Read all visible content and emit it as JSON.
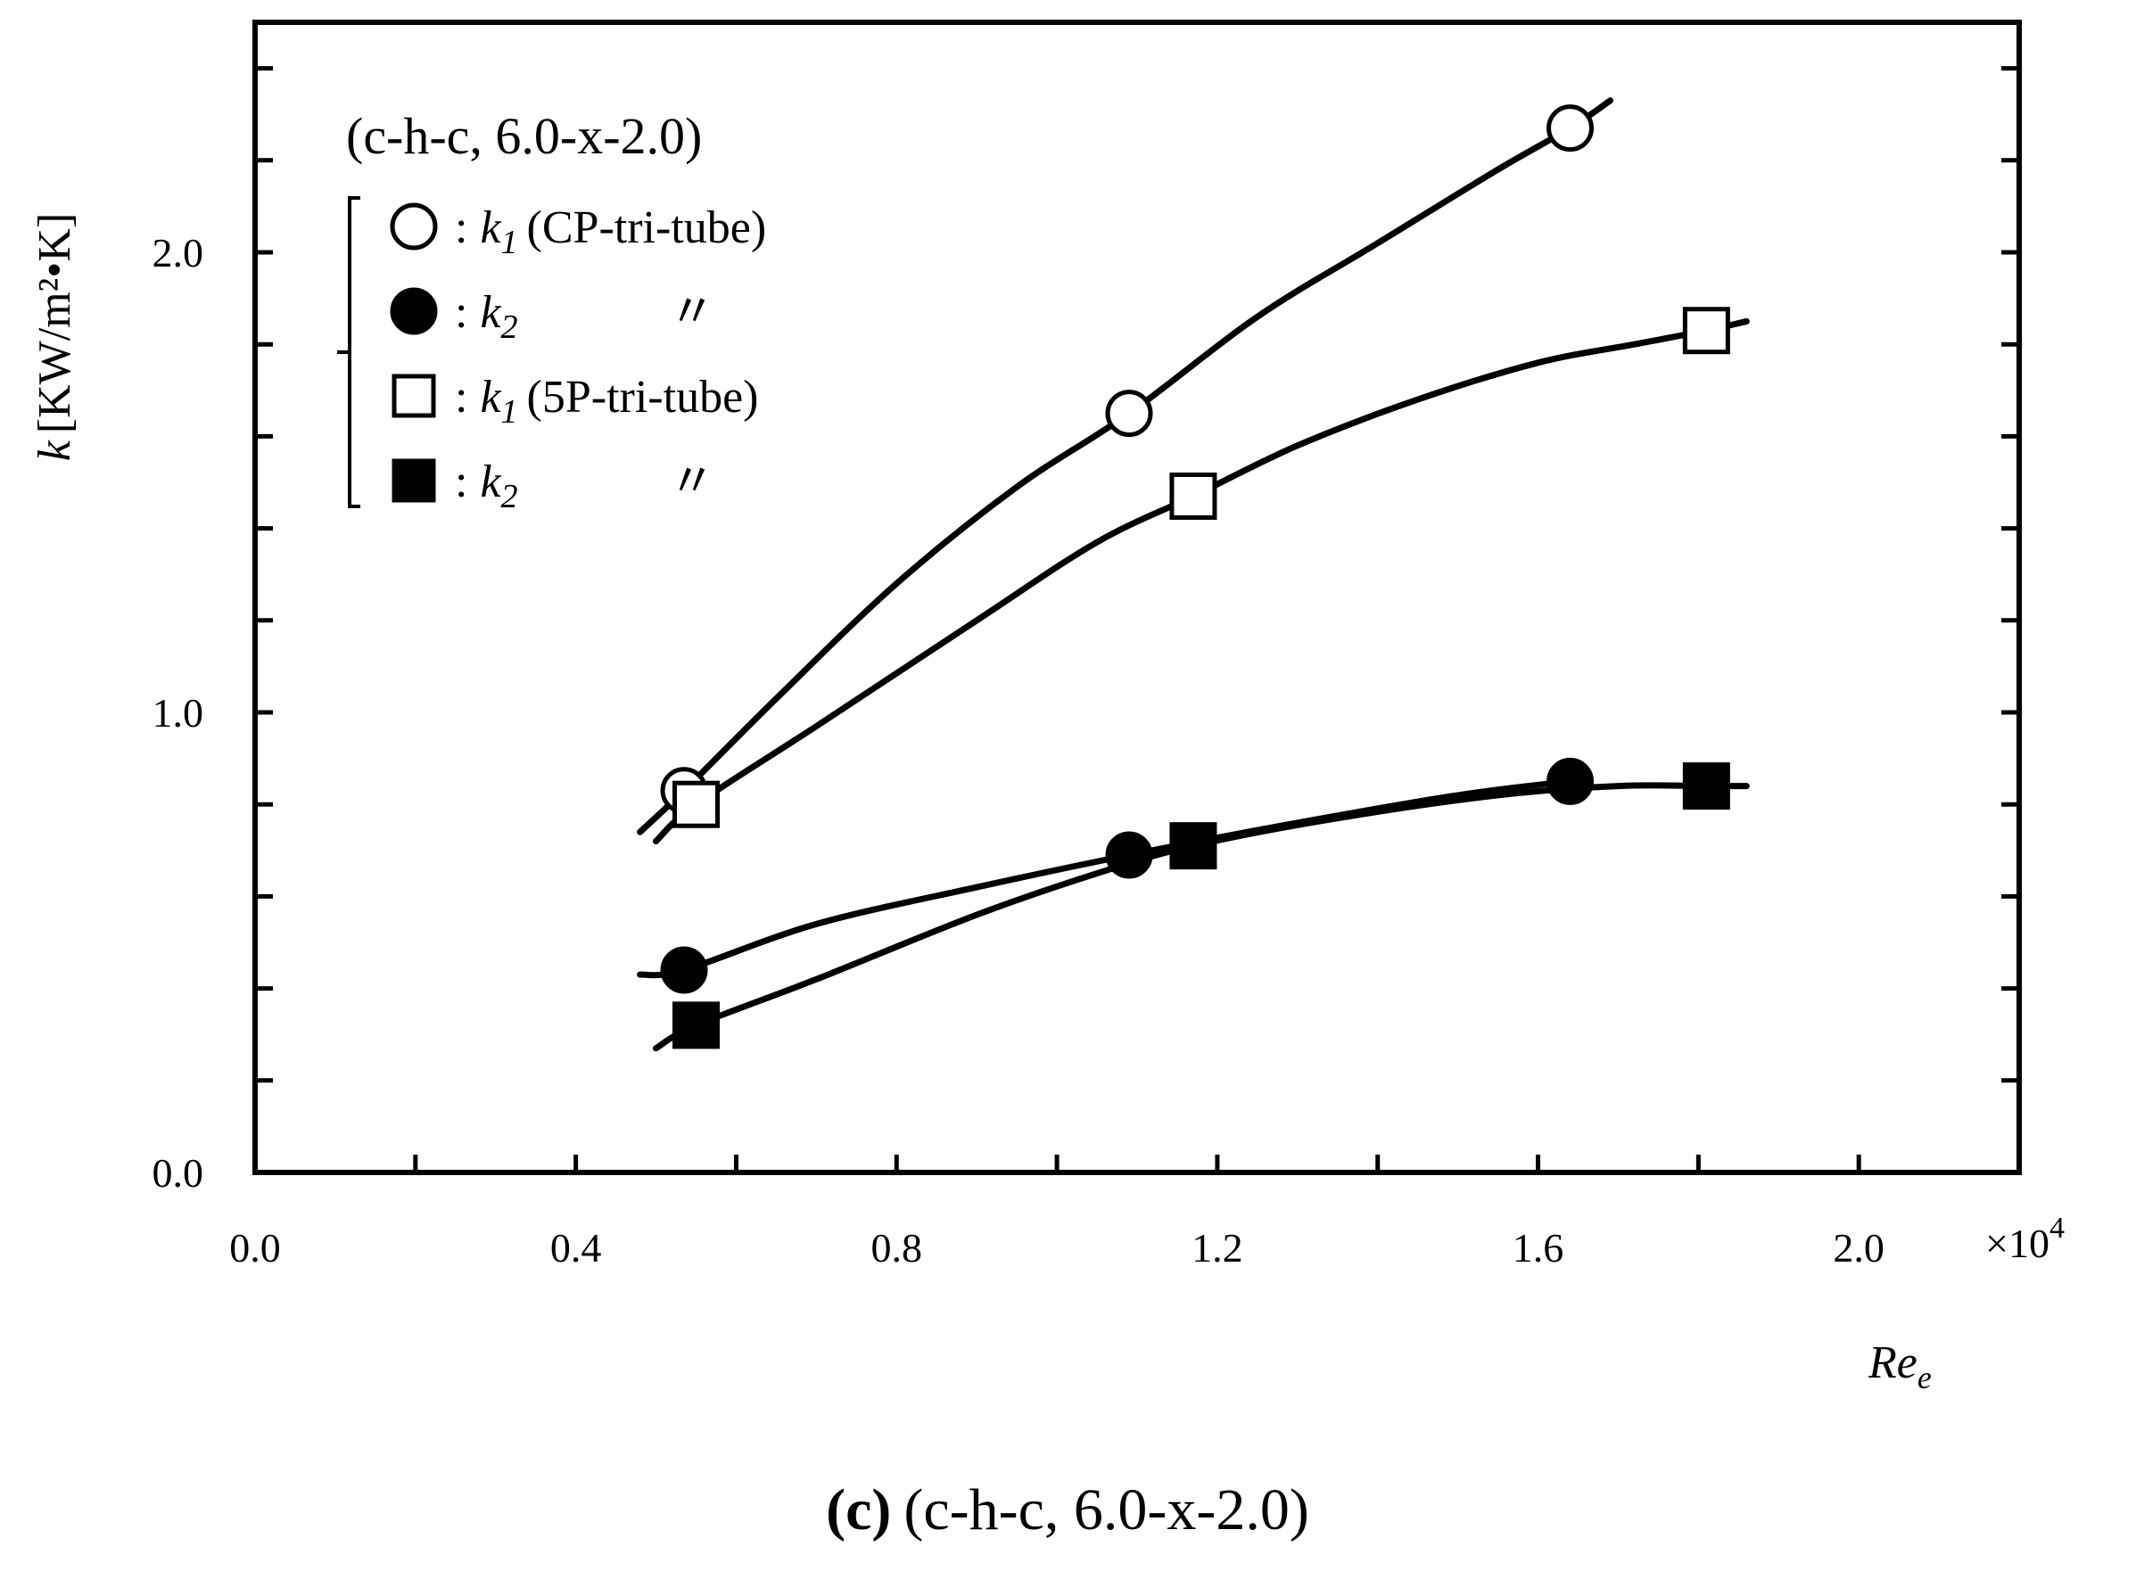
{
  "chart_data": {
    "type": "scatter",
    "title": "(c-h-c, 6.0-x-2.0)",
    "caption": {
      "label": "c",
      "text": "(c-h-c, 6.0-x-2.0)"
    },
    "xlabel": {
      "symbol": "Re",
      "subscript": "e"
    },
    "x_multiplier": "×10",
    "x_multiplier_exponent": "4",
    "ylabel": {
      "symbol": "k",
      "unit": "[KW/m²•K]"
    },
    "xlim": [
      0.0,
      2.2
    ],
    "ylim": [
      0.0,
      2.5
    ],
    "x_tick_labels": [
      "0.0",
      "0.4",
      "0.8",
      "1.2",
      "1.6",
      "2.0"
    ],
    "y_tick_labels": [
      "0.0",
      "1.0",
      "2.0"
    ],
    "x_ticks": [
      0.0,
      0.2,
      0.4,
      0.6,
      0.8,
      1.0,
      1.2,
      1.4,
      1.6,
      1.8,
      2.0,
      2.2
    ],
    "y_ticks": [
      0.0,
      0.2,
      0.4,
      0.6,
      0.8,
      1.0,
      1.2,
      1.4,
      1.6,
      1.8,
      2.0,
      2.2,
      2.4
    ],
    "grid": false,
    "legend_placement": "top-left",
    "series": [
      {
        "marker": "circle-open",
        "legend": {
          "symbol": "k",
          "subscript": "1",
          "text": "(CP-tri-tube)"
        },
        "points": [
          [
            0.535,
            0.83
          ],
          [
            1.09,
            1.65
          ],
          [
            1.64,
            2.27
          ]
        ],
        "curve": [
          [
            0.48,
            0.74
          ],
          [
            0.535,
            0.83
          ],
          [
            0.65,
            1.03
          ],
          [
            0.8,
            1.28
          ],
          [
            0.95,
            1.49
          ],
          [
            1.09,
            1.65
          ],
          [
            1.25,
            1.86
          ],
          [
            1.4,
            2.02
          ],
          [
            1.55,
            2.18
          ],
          [
            1.64,
            2.27
          ],
          [
            1.69,
            2.33
          ]
        ]
      },
      {
        "marker": "circle-filled",
        "legend": {
          "symbol": "k",
          "subscript": "2",
          "text": "〃"
        },
        "points": [
          [
            0.535,
            0.44
          ],
          [
            1.09,
            0.69
          ],
          [
            1.64,
            0.85
          ]
        ],
        "curve": [
          [
            0.48,
            0.43
          ],
          [
            0.535,
            0.44
          ],
          [
            0.7,
            0.54
          ],
          [
            0.9,
            0.62
          ],
          [
            1.09,
            0.69
          ],
          [
            1.3,
            0.76
          ],
          [
            1.5,
            0.82
          ],
          [
            1.64,
            0.85
          ],
          [
            1.66,
            0.85
          ]
        ]
      },
      {
        "marker": "square-open",
        "legend": {
          "symbol": "k",
          "subscript": "1",
          "text": "(5P-tri-tube)"
        },
        "points": [
          [
            0.55,
            0.8
          ],
          [
            1.17,
            1.47
          ],
          [
            1.81,
            1.83
          ]
        ],
        "curve": [
          [
            0.5,
            0.72
          ],
          [
            0.55,
            0.8
          ],
          [
            0.7,
            0.97
          ],
          [
            0.9,
            1.2
          ],
          [
            1.05,
            1.37
          ],
          [
            1.17,
            1.47
          ],
          [
            1.3,
            1.58
          ],
          [
            1.45,
            1.68
          ],
          [
            1.6,
            1.76
          ],
          [
            1.72,
            1.8
          ],
          [
            1.81,
            1.83
          ],
          [
            1.86,
            1.85
          ]
        ]
      },
      {
        "marker": "square-filled",
        "legend": {
          "symbol": "k",
          "subscript": "2",
          "text": "〃"
        },
        "points": [
          [
            0.55,
            0.32
          ],
          [
            1.17,
            0.71
          ],
          [
            1.81,
            0.84
          ]
        ],
        "curve": [
          [
            0.5,
            0.27
          ],
          [
            0.55,
            0.32
          ],
          [
            0.7,
            0.42
          ],
          [
            0.9,
            0.56
          ],
          [
            1.05,
            0.65
          ],
          [
            1.17,
            0.71
          ],
          [
            1.35,
            0.77
          ],
          [
            1.55,
            0.82
          ],
          [
            1.7,
            0.84
          ],
          [
            1.81,
            0.84
          ],
          [
            1.86,
            0.84
          ]
        ]
      }
    ]
  }
}
